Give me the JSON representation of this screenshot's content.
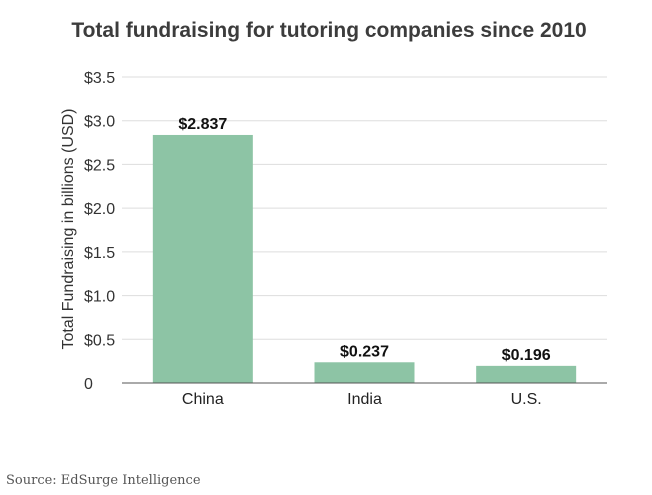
{
  "chart_data": {
    "type": "bar",
    "title": "Total fundraising for tutoring companies since 2010",
    "ylabel": "Total Fundraising in billions (USD)",
    "xlabel": "",
    "categories": [
      "China",
      "India",
      "U.S."
    ],
    "values": [
      2.837,
      0.237,
      0.196
    ],
    "value_labels": [
      "$2.837",
      "$0.237",
      "$0.196"
    ],
    "ylim": [
      0,
      3.5
    ],
    "yticks": [
      0,
      0.5,
      1.0,
      1.5,
      2.0,
      2.5,
      3.0,
      3.5
    ],
    "ytick_labels": [
      "0",
      "$0.5",
      "$1.0",
      "$1.5",
      "$2.0",
      "$2.5",
      "$3.0",
      "$3.5"
    ],
    "grid": true,
    "bar_color": "#8dc4a5",
    "grid_color": "#dddddd"
  },
  "source": "Source: EdSurge Intelligence"
}
